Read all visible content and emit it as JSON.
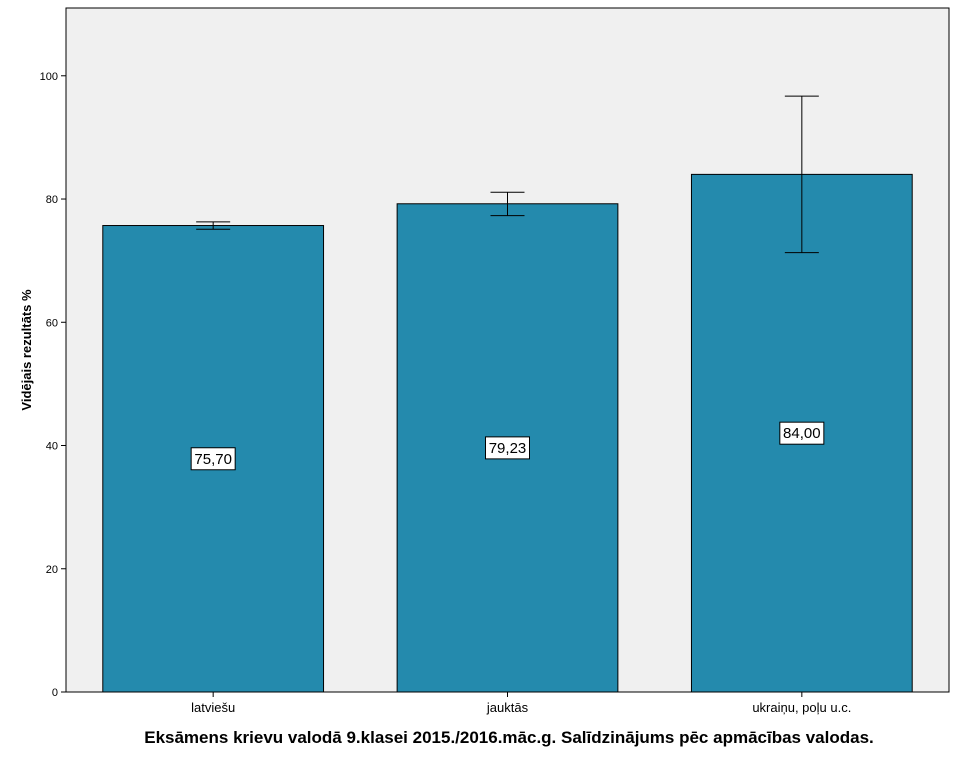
{
  "chart_data": {
    "type": "bar",
    "categories": [
      "latviešu",
      "jauktās",
      "ukraiņu, poļu u.c."
    ],
    "values": [
      75.7,
      79.23,
      84.0
    ],
    "value_labels": [
      "75,70",
      "79,23",
      "84,00"
    ],
    "error_bars": [
      {
        "low": 75.1,
        "high": 76.3
      },
      {
        "low": 77.3,
        "high": 81.1
      },
      {
        "low": 71.3,
        "high": 96.7
      }
    ],
    "title": "",
    "xlabel": "Eksāmens krievu valodā 9.klasei 2015./2016.māc.g. Salīdzinājums pēc apmācības valodas.",
    "ylabel": "Vidējais rezultāts %",
    "ylim": [
      0,
      111
    ],
    "yticks": [
      0,
      20,
      40,
      60,
      80,
      100
    ],
    "grid": false,
    "bar_color": "#248aad",
    "plot_background": "#f0f0f0"
  }
}
